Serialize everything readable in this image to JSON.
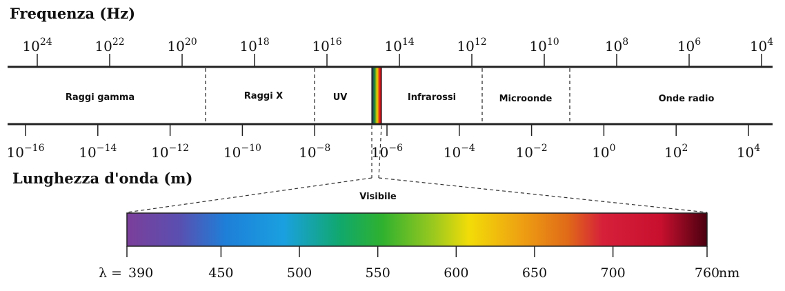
{
  "frequency": {
    "title": "Frequenza (Hz)",
    "ticks": [
      {
        "base": "10",
        "exp": "24"
      },
      {
        "base": "10",
        "exp": "22"
      },
      {
        "base": "10",
        "exp": "20"
      },
      {
        "base": "10",
        "exp": "18"
      },
      {
        "base": "10",
        "exp": "16"
      },
      {
        "base": "10",
        "exp": "14"
      },
      {
        "base": "10",
        "exp": "12"
      },
      {
        "base": "10",
        "exp": "10"
      },
      {
        "base": "10",
        "exp": "8"
      },
      {
        "base": "10",
        "exp": "6"
      },
      {
        "base": "10",
        "exp": "4"
      }
    ]
  },
  "bands": [
    {
      "label": "Raggi gamma"
    },
    {
      "label": "Raggi X"
    },
    {
      "label": "UV"
    },
    {
      "label": "Infrarossi"
    },
    {
      "label": "Microonde"
    },
    {
      "label": "Onde radio"
    }
  ],
  "wavelength": {
    "title": "Lunghezza d'onda (m)",
    "ticks": [
      {
        "base": "10",
        "exp": "−16"
      },
      {
        "base": "10",
        "exp": "−14"
      },
      {
        "base": "10",
        "exp": "−12"
      },
      {
        "base": "10",
        "exp": "−10"
      },
      {
        "base": "10",
        "exp": "−8"
      },
      {
        "base": "10",
        "exp": "−6"
      },
      {
        "base": "10",
        "exp": "−4"
      },
      {
        "base": "10",
        "exp": "−2"
      },
      {
        "base": "10",
        "exp": "0"
      },
      {
        "base": "10",
        "exp": "2"
      },
      {
        "base": "10",
        "exp": "4"
      }
    ]
  },
  "visible": {
    "title": "Visibile",
    "prefix": "λ = ",
    "unit": "nm",
    "ticks": [
      "390",
      "450",
      "500",
      "550",
      "600",
      "650",
      "700",
      "760"
    ],
    "gradient_colors": [
      "#7b3f9a",
      "#5a4fb0",
      "#1e7fd8",
      "#1aa0e0",
      "#11a86a",
      "#2fb12f",
      "#9cc91e",
      "#f2dc08",
      "#eea012",
      "#e06a18",
      "#d6203a",
      "#c8102e",
      "#4a0010"
    ]
  }
}
